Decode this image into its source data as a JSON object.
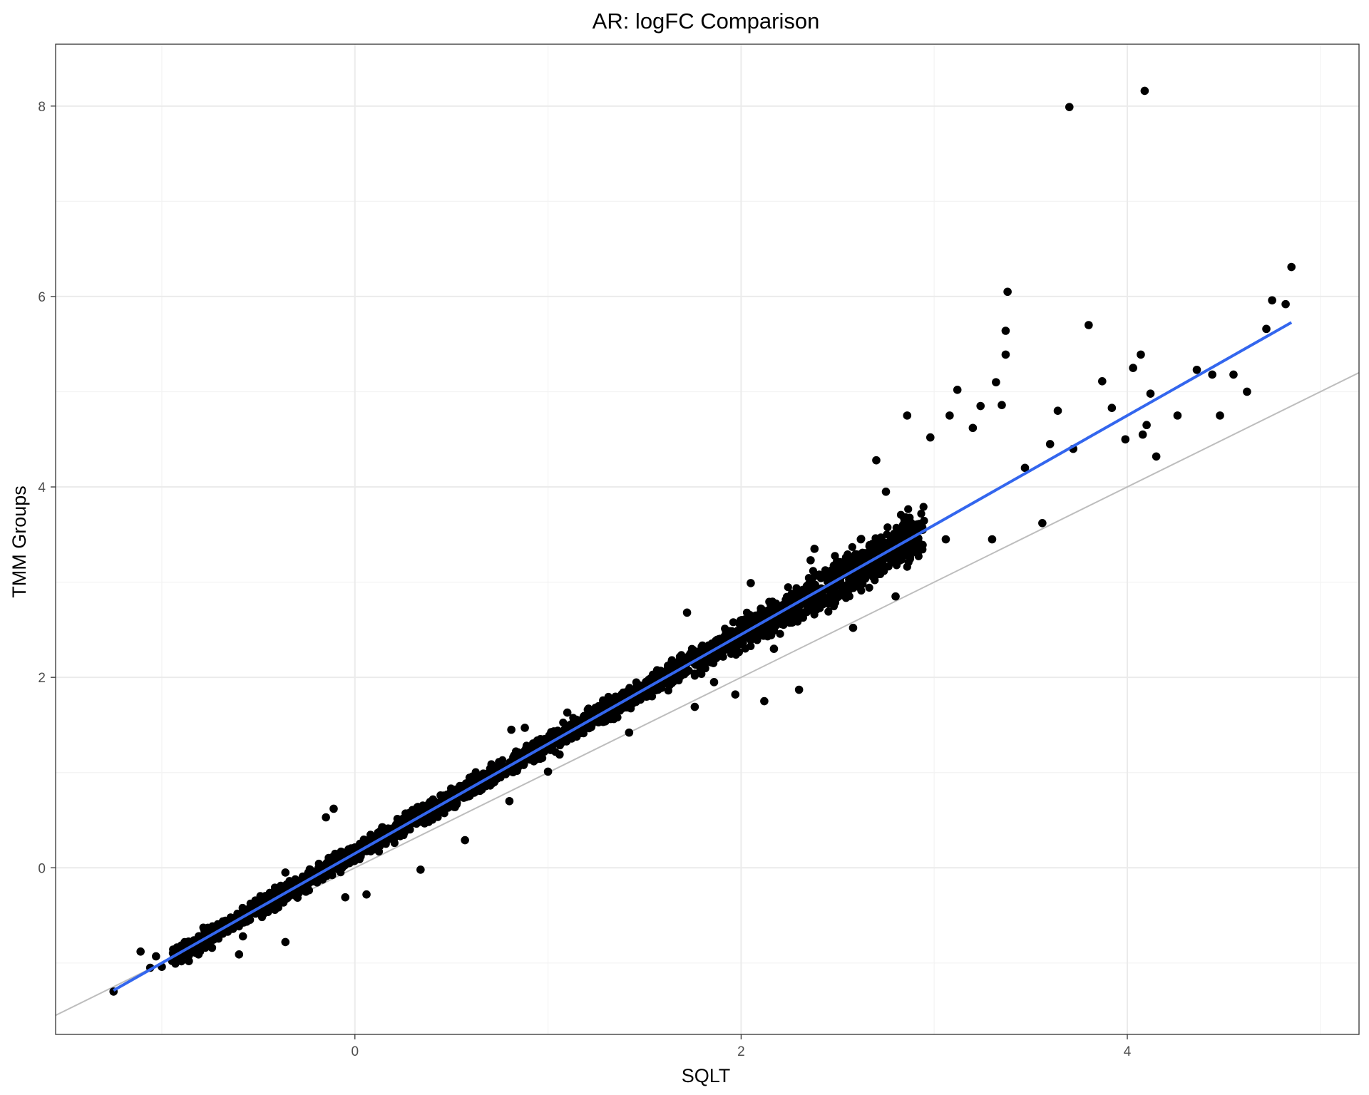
{
  "chart_data": {
    "type": "scatter",
    "title": "AR: logFC Comparison",
    "xlabel": "SQLT",
    "ylabel": "TMM Groups",
    "xlim": [
      -1.55,
      5.2
    ],
    "ylim": [
      -1.75,
      8.65
    ],
    "x_ticks": [
      0,
      2,
      4
    ],
    "y_ticks": [
      0,
      2,
      4,
      6,
      8
    ],
    "grid": true,
    "legend": "none",
    "colors": {
      "points": "#000000",
      "fit_line": "#3366ee",
      "reference_line": "#bdbdbd",
      "grid_major": "#ebebeb",
      "grid_minor": "#f3f3f3",
      "panel_border": "#333333"
    },
    "fit_line": {
      "slope": 1.15,
      "intercept": 0.15,
      "x_range": [
        -1.25,
        4.85
      ]
    },
    "reference_line": {
      "slope": 1,
      "intercept": 0
    },
    "series": [
      {
        "points": [
          [
            -1.25,
            -1.3
          ],
          [
            -1.11,
            -0.88
          ],
          [
            -1.03,
            -0.93
          ],
          [
            -1.06,
            -1.05
          ],
          [
            -1.0,
            -1.04
          ],
          [
            -0.93,
            -0.88
          ],
          [
            -0.86,
            -0.98
          ],
          [
            -0.81,
            -0.91
          ],
          [
            -0.74,
            -0.84
          ],
          [
            -0.6,
            -0.91
          ],
          [
            -0.58,
            -0.72
          ],
          [
            -0.36,
            -0.05
          ],
          [
            -0.44,
            -0.43
          ],
          [
            -0.36,
            -0.78
          ],
          [
            -0.3,
            -0.22
          ],
          [
            -0.15,
            0.53
          ],
          [
            -0.11,
            0.62
          ],
          [
            -0.1,
            0.12
          ],
          [
            -0.05,
            -0.31
          ],
          [
            0.06,
            -0.28
          ],
          [
            0.34,
            -0.02
          ],
          [
            0.57,
            0.29
          ],
          [
            0.8,
            0.7
          ],
          [
            0.81,
            1.45
          ],
          [
            0.88,
            1.47
          ],
          [
            1.0,
            1.01
          ],
          [
            1.06,
            1.19
          ],
          [
            1.1,
            1.63
          ],
          [
            1.42,
            1.42
          ],
          [
            1.54,
            1.97
          ],
          [
            1.62,
            1.96
          ],
          [
            1.72,
            2.68
          ],
          [
            1.76,
            2.2
          ],
          [
            1.76,
            1.69
          ],
          [
            1.86,
            1.95
          ],
          [
            1.97,
            1.82
          ],
          [
            2.05,
            2.99
          ],
          [
            2.12,
            1.75
          ],
          [
            2.17,
            2.3
          ],
          [
            2.3,
            1.87
          ],
          [
            2.36,
            3.23
          ],
          [
            2.38,
            3.35
          ],
          [
            2.58,
            2.52
          ],
          [
            2.61,
            3.1
          ],
          [
            2.62,
            3.45
          ],
          [
            2.7,
            4.28
          ],
          [
            2.75,
            3.95
          ],
          [
            2.8,
            2.85
          ],
          [
            2.86,
            4.75
          ],
          [
            2.98,
            4.52
          ],
          [
            3.06,
            3.45
          ],
          [
            3.08,
            4.75
          ],
          [
            3.12,
            5.02
          ],
          [
            3.2,
            4.62
          ],
          [
            3.24,
            4.85
          ],
          [
            3.3,
            3.45
          ],
          [
            3.32,
            5.1
          ],
          [
            3.35,
            4.86
          ],
          [
            3.38,
            6.05
          ],
          [
            3.37,
            5.39
          ],
          [
            3.37,
            5.64
          ],
          [
            3.47,
            4.2
          ],
          [
            3.56,
            3.62
          ],
          [
            3.6,
            4.45
          ],
          [
            3.64,
            4.8
          ],
          [
            3.7,
            7.99
          ],
          [
            3.72,
            4.4
          ],
          [
            3.8,
            5.7
          ],
          [
            3.87,
            5.11
          ],
          [
            3.92,
            4.83
          ],
          [
            3.99,
            4.5
          ],
          [
            4.03,
            5.25
          ],
          [
            4.07,
            5.39
          ],
          [
            4.08,
            4.55
          ],
          [
            4.09,
            8.16
          ],
          [
            4.1,
            4.65
          ],
          [
            4.12,
            4.98
          ],
          [
            4.15,
            4.32
          ],
          [
            4.26,
            4.75
          ],
          [
            4.36,
            5.23
          ],
          [
            4.44,
            5.18
          ],
          [
            4.48,
            4.75
          ],
          [
            4.55,
            5.18
          ],
          [
            4.62,
            5.0
          ],
          [
            4.72,
            5.66
          ],
          [
            4.75,
            5.96
          ],
          [
            4.82,
            5.92
          ],
          [
            4.85,
            6.31
          ]
        ]
      }
    ]
  }
}
